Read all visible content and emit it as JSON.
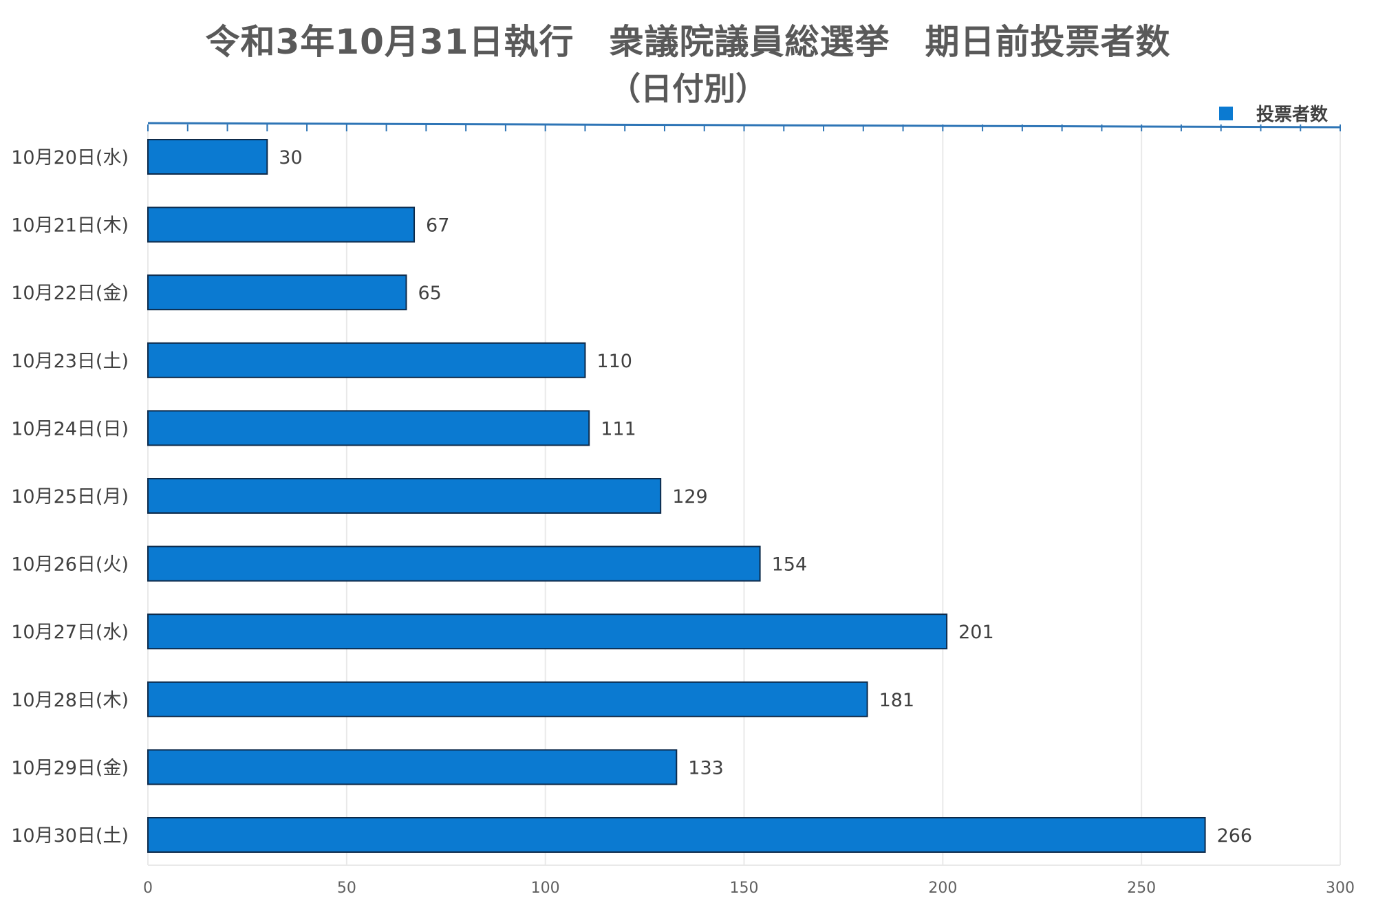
{
  "chart_data": {
    "type": "bar",
    "orientation": "horizontal",
    "title": "令和3年10月31日執行　衆議院議員総選挙　期日前投票者数",
    "subtitle": "（日付別）",
    "categories": [
      "10月20日(水)",
      "10月21日(木)",
      "10月22日(金)",
      "10月23日(土)",
      "10月24日(日)",
      "10月25日(月)",
      "10月26日(火)",
      "10月27日(水)",
      "10月28日(木)",
      "10月29日(金)",
      "10月30日(土)"
    ],
    "series": [
      {
        "name": "投票者数",
        "values": [
          30,
          67,
          65,
          110,
          111,
          129,
          154,
          201,
          181,
          133,
          266
        ]
      }
    ],
    "xlim": [
      0,
      300
    ],
    "xticks": [
      0,
      50,
      100,
      150,
      200,
      250,
      300
    ],
    "legend_position": "top-right",
    "grid": true,
    "colors": {
      "bar": "#0b7ad1",
      "bar_edge": "#0d2a4a",
      "axis": "#2e75b6",
      "grid": "#e9e9e9",
      "text": "#404040"
    }
  }
}
